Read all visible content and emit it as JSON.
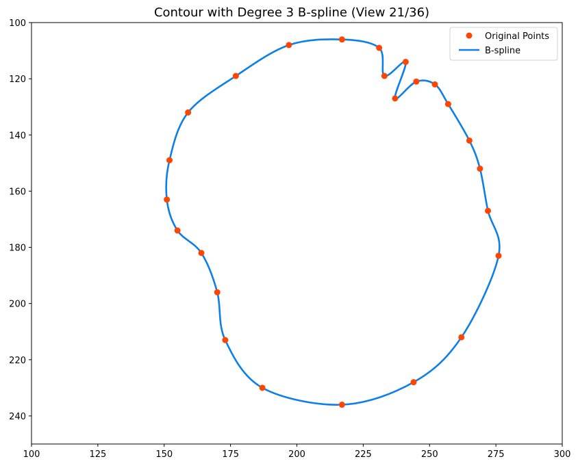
{
  "chart_data": {
    "type": "scatter",
    "title": "Contour with Degree 3 B-spline (View 21/36)",
    "xlabel": "",
    "ylabel": "",
    "xlim": [
      100,
      300
    ],
    "ylim": [
      250,
      100
    ],
    "y_axis_inverted": true,
    "xticks": [
      100,
      125,
      150,
      175,
      200,
      225,
      250,
      275,
      300
    ],
    "yticks": [
      100,
      120,
      140,
      160,
      180,
      200,
      220,
      240
    ],
    "grid": false,
    "legend_position": "top-right",
    "series": [
      {
        "name": "Original Points",
        "kind": "scatter",
        "color": "#ff4500",
        "points": [
          [
            217,
            106
          ],
          [
            231,
            109
          ],
          [
            233,
            119
          ],
          [
            241,
            114
          ],
          [
            237,
            127
          ],
          [
            245,
            121
          ],
          [
            252,
            122
          ],
          [
            257,
            129
          ],
          [
            265,
            142
          ],
          [
            269,
            152
          ],
          [
            272,
            167
          ],
          [
            276,
            183
          ],
          [
            262,
            212
          ],
          [
            244,
            228
          ],
          [
            217,
            236
          ],
          [
            187,
            230
          ],
          [
            173,
            213
          ],
          [
            170,
            196
          ],
          [
            164,
            182
          ],
          [
            155,
            174
          ],
          [
            151,
            163
          ],
          [
            152,
            149
          ],
          [
            159,
            132
          ],
          [
            177,
            119
          ],
          [
            197,
            108
          ]
        ]
      },
      {
        "name": "B-spline",
        "kind": "line",
        "color": "#0c7fe9",
        "closed": true
      }
    ]
  }
}
